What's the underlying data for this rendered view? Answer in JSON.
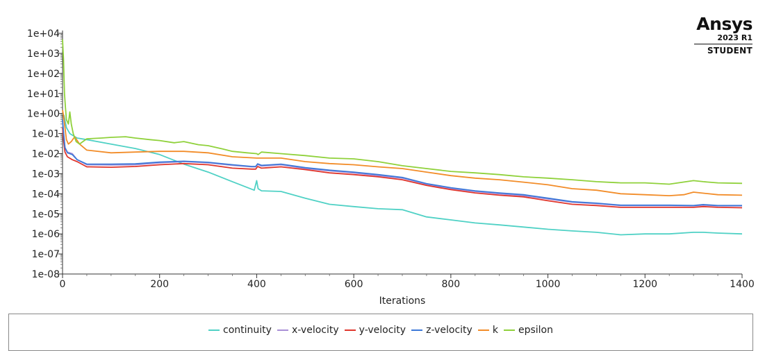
{
  "brand": {
    "name": "Ansys",
    "release": "2023 R1",
    "edition": "STUDENT"
  },
  "chart_data": {
    "type": "line",
    "xlabel": "Iterations",
    "ylabel": "",
    "xlim": [
      0,
      1400
    ],
    "ylim": [
      1e-08,
      10000.0
    ],
    "yscale": "log",
    "x_ticks": [
      0,
      200,
      400,
      600,
      800,
      1000,
      1200,
      1400
    ],
    "y_ticks": [
      "1e-08",
      "1e-07",
      "1e-06",
      "1e-05",
      "1e-04",
      "1e-03",
      "1e-02",
      "1e-01",
      "1e+00",
      "1e+01",
      "1e+02",
      "1e+03",
      "1e+04"
    ],
    "grid": false,
    "legend_position": "bottom",
    "series": [
      {
        "name": "continuity",
        "color": "#4fd1c5",
        "x": [
          0,
          3,
          8,
          15,
          30,
          50,
          100,
          150,
          200,
          250,
          300,
          350,
          395,
          400,
          403,
          410,
          450,
          500,
          550,
          600,
          650,
          700,
          750,
          800,
          850,
          900,
          950,
          1000,
          1050,
          1100,
          1150,
          1200,
          1250,
          1300,
          1320,
          1350,
          1400
        ],
        "y": [
          1,
          0.8,
          0.2,
          0.1,
          0.06,
          0.05,
          0.03,
          0.018,
          0.009,
          0.003,
          0.0012,
          0.0004,
          0.00015,
          0.00045,
          0.00018,
          0.00014,
          0.00013,
          6e-05,
          3e-05,
          2.3e-05,
          1.8e-05,
          1.6e-05,
          7e-06,
          5e-06,
          3.5e-06,
          2.8e-06,
          2.2e-06,
          1.7e-06,
          1.4e-06,
          1.2e-06,
          9e-07,
          1e-06,
          1e-06,
          1.2e-06,
          1.2e-06,
          1.1e-06,
          1e-06
        ]
      },
      {
        "name": "x-velocity",
        "color": "#a98fd6",
        "x": [
          0,
          2,
          5,
          10,
          20,
          30,
          50,
          100,
          150,
          200,
          250,
          300,
          350,
          390,
          398,
          402,
          410,
          450,
          500,
          550,
          600,
          650,
          700,
          750,
          800,
          850,
          900,
          950,
          1000,
          1050,
          1100,
          1150,
          1200,
          1250,
          1300,
          1320,
          1350,
          1400
        ],
        "y": [
          0.4,
          0.1,
          0.02,
          0.012,
          0.01,
          0.005,
          0.0028,
          0.0027,
          0.0028,
          0.0035,
          0.004,
          0.0035,
          0.0026,
          0.0022,
          0.0022,
          0.0029,
          0.0024,
          0.0028,
          0.0018,
          0.0014,
          0.0011,
          0.0008,
          0.0006,
          0.0003,
          0.00018,
          0.00013,
          0.0001,
          8e-05,
          5.5e-05,
          3.8e-05,
          3.2e-05,
          2.6e-05,
          2.6e-05,
          2.6e-05,
          2.5e-05,
          2.7e-05,
          2.5e-05,
          2.5e-05
        ]
      },
      {
        "name": "y-velocity",
        "color": "#e0352b",
        "x": [
          0,
          2,
          5,
          10,
          20,
          30,
          50,
          100,
          150,
          200,
          250,
          300,
          350,
          390,
          398,
          402,
          410,
          450,
          500,
          550,
          600,
          650,
          700,
          750,
          800,
          850,
          900,
          950,
          1000,
          1050,
          1100,
          1150,
          1200,
          1250,
          1300,
          1320,
          1350,
          1400
        ],
        "y": [
          0.2,
          0.05,
          0.012,
          0.007,
          0.005,
          0.004,
          0.0022,
          0.0021,
          0.0023,
          0.0028,
          0.0032,
          0.0028,
          0.0019,
          0.0017,
          0.0017,
          0.0023,
          0.0019,
          0.0022,
          0.0016,
          0.0011,
          0.0009,
          0.0007,
          0.0005,
          0.00026,
          0.00016,
          0.00011,
          8.5e-05,
          7e-05,
          4.5e-05,
          3e-05,
          2.6e-05,
          2.1e-05,
          2.1e-05,
          2.1e-05,
          2.1e-05,
          2.3e-05,
          2.1e-05,
          2e-05
        ]
      },
      {
        "name": "z-velocity",
        "color": "#3c78d8",
        "x": [
          0,
          2,
          5,
          10,
          20,
          30,
          50,
          100,
          150,
          200,
          250,
          300,
          350,
          390,
          398,
          402,
          410,
          450,
          500,
          550,
          600,
          650,
          700,
          750,
          800,
          850,
          900,
          950,
          1000,
          1050,
          1100,
          1150,
          1200,
          1250,
          1300,
          1320,
          1350,
          1400
        ],
        "y": [
          0.5,
          0.12,
          0.02,
          0.011,
          0.009,
          0.005,
          0.003,
          0.003,
          0.0031,
          0.0038,
          0.0042,
          0.0037,
          0.0028,
          0.0023,
          0.0023,
          0.0031,
          0.0026,
          0.003,
          0.002,
          0.0015,
          0.0012,
          0.0009,
          0.00065,
          0.00032,
          0.0002,
          0.00014,
          0.00011,
          9e-05,
          6e-05,
          4e-05,
          3.4e-05,
          2.7e-05,
          2.7e-05,
          2.7e-05,
          2.6e-05,
          2.9e-05,
          2.6e-05,
          2.6e-05
        ]
      },
      {
        "name": "k",
        "color": "#f28c28",
        "x": [
          0,
          2,
          5,
          8,
          12,
          18,
          25,
          35,
          50,
          100,
          150,
          200,
          250,
          300,
          350,
          400,
          450,
          500,
          550,
          600,
          650,
          700,
          750,
          800,
          850,
          900,
          950,
          1000,
          1050,
          1100,
          1150,
          1200,
          1250,
          1280,
          1300,
          1350,
          1400
        ],
        "y": [
          1.5,
          0.8,
          0.2,
          0.05,
          0.03,
          0.04,
          0.07,
          0.03,
          0.015,
          0.011,
          0.012,
          0.013,
          0.013,
          0.011,
          0.007,
          0.006,
          0.006,
          0.004,
          0.0032,
          0.0028,
          0.0022,
          0.0018,
          0.0012,
          0.0008,
          0.0006,
          0.0005,
          0.00038,
          0.00028,
          0.00018,
          0.00015,
          0.0001,
          9e-05,
          8e-05,
          9e-05,
          0.00012,
          9e-05,
          8.5e-05
        ]
      },
      {
        "name": "epsilon",
        "color": "#8fd13a",
        "x": [
          0,
          2,
          4,
          6,
          8,
          12,
          15,
          18,
          22,
          28,
          35,
          42,
          50,
          80,
          100,
          130,
          150,
          180,
          200,
          230,
          250,
          280,
          300,
          330,
          350,
          380,
          400,
          403,
          410,
          450,
          500,
          550,
          600,
          650,
          700,
          750,
          800,
          850,
          900,
          950,
          1000,
          1050,
          1100,
          1150,
          1200,
          1250,
          1300,
          1320,
          1350,
          1400
        ],
        "y": [
          5000,
          500,
          10,
          2,
          0.5,
          0.3,
          1.2,
          0.3,
          0.1,
          0.04,
          0.03,
          0.04,
          0.055,
          0.06,
          0.065,
          0.07,
          0.06,
          0.05,
          0.045,
          0.035,
          0.04,
          0.028,
          0.025,
          0.017,
          0.013,
          0.011,
          0.01,
          0.009,
          0.012,
          0.01,
          0.008,
          0.006,
          0.0055,
          0.004,
          0.0025,
          0.0018,
          0.0013,
          0.0011,
          0.0009,
          0.0007,
          0.0006,
          0.0005,
          0.0004,
          0.00035,
          0.00035,
          0.0003,
          0.00045,
          0.0004,
          0.00035,
          0.00033
        ]
      }
    ]
  }
}
